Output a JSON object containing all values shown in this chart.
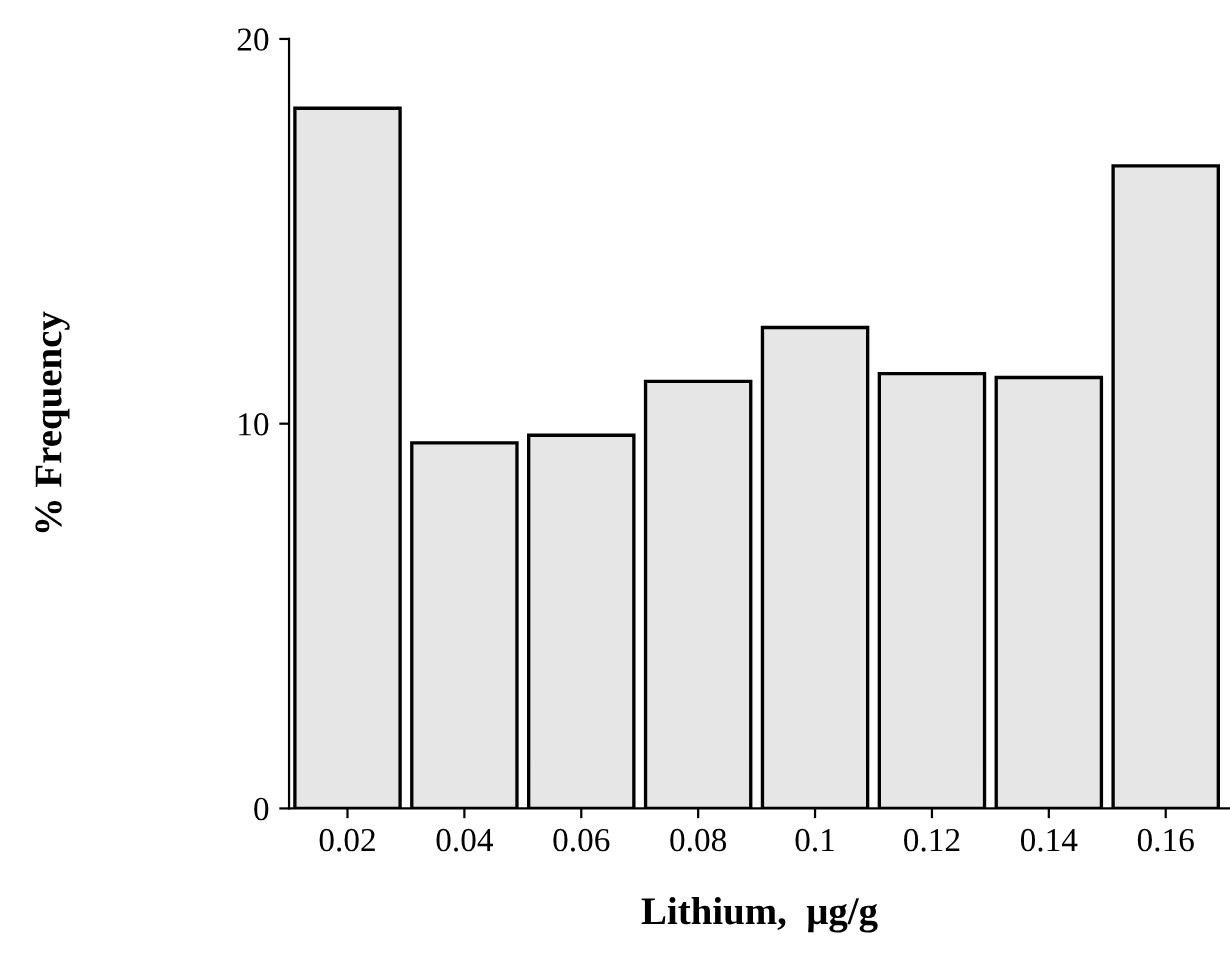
{
  "chart_data": {
    "type": "bar",
    "xlabel": "Lithium,  μg/g",
    "ylabel": "% Frequency",
    "categories": [
      "0.02",
      "0.04",
      "0.06",
      "0.08",
      "0.1",
      "0.12",
      "0.14",
      "0.16"
    ],
    "values": [
      18.2,
      9.5,
      9.7,
      11.1,
      12.5,
      11.3,
      11.2,
      16.7
    ],
    "color": "#e6e6e6",
    "ylim": [
      0,
      20
    ],
    "yticks": [
      0,
      10,
      20
    ],
    "grid": false,
    "legend": false
  }
}
